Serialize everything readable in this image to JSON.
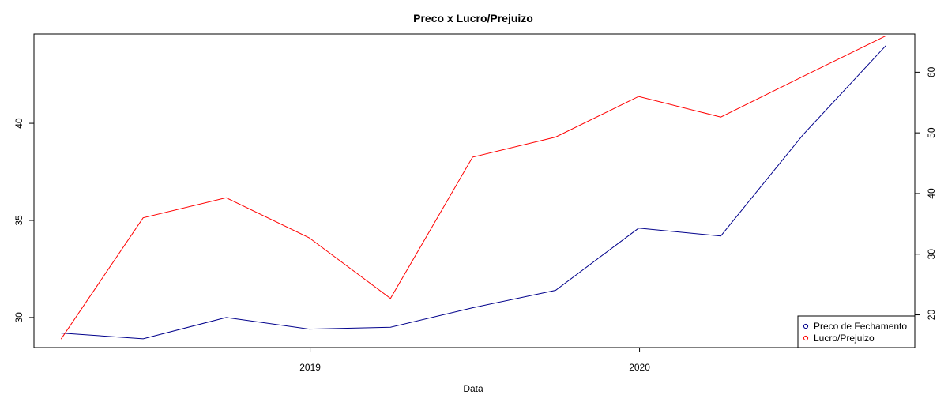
{
  "chart_data": {
    "type": "line",
    "title": "Preco x Lucro/Prejuizo",
    "xlabel": "Data",
    "ylabel_left": "",
    "ylabel_right": "",
    "x": [
      "2018-03-31",
      "2018-06-30",
      "2018-09-30",
      "2018-12-31",
      "2019-03-31",
      "2019-06-30",
      "2019-09-30",
      "2019-12-31",
      "2020-03-31",
      "2020-06-30",
      "2020-09-30"
    ],
    "x_ticks": [
      {
        "label": "2019",
        "date": "2019-01-01"
      },
      {
        "label": "2020",
        "date": "2020-01-01"
      }
    ],
    "xlim": [
      "2018-03-01",
      "2020-11-01"
    ],
    "left_axis": {
      "ylim": [
        28.45,
        44.6
      ],
      "ticks": [
        30,
        35,
        40
      ]
    },
    "right_axis": {
      "ylim": [
        14.6,
        66.3
      ],
      "ticks": [
        20,
        30,
        40,
        50,
        60
      ]
    },
    "series": [
      {
        "name": "Preco de Fechamento",
        "axis": "left",
        "color": "#00008B",
        "values": [
          29.2,
          28.9,
          30.0,
          29.4,
          29.5,
          30.5,
          31.4,
          34.6,
          34.2,
          39.4,
          44.0
        ]
      },
      {
        "name": "Lucro/Prejuizo",
        "axis": "right",
        "color": "#FF0000",
        "values": [
          16.0,
          36.0,
          39.3,
          32.7,
          22.7,
          46.0,
          49.3,
          56.0,
          52.6,
          59.3,
          66.0
        ]
      }
    ],
    "legend_position": "bottom-right",
    "grid": false
  }
}
